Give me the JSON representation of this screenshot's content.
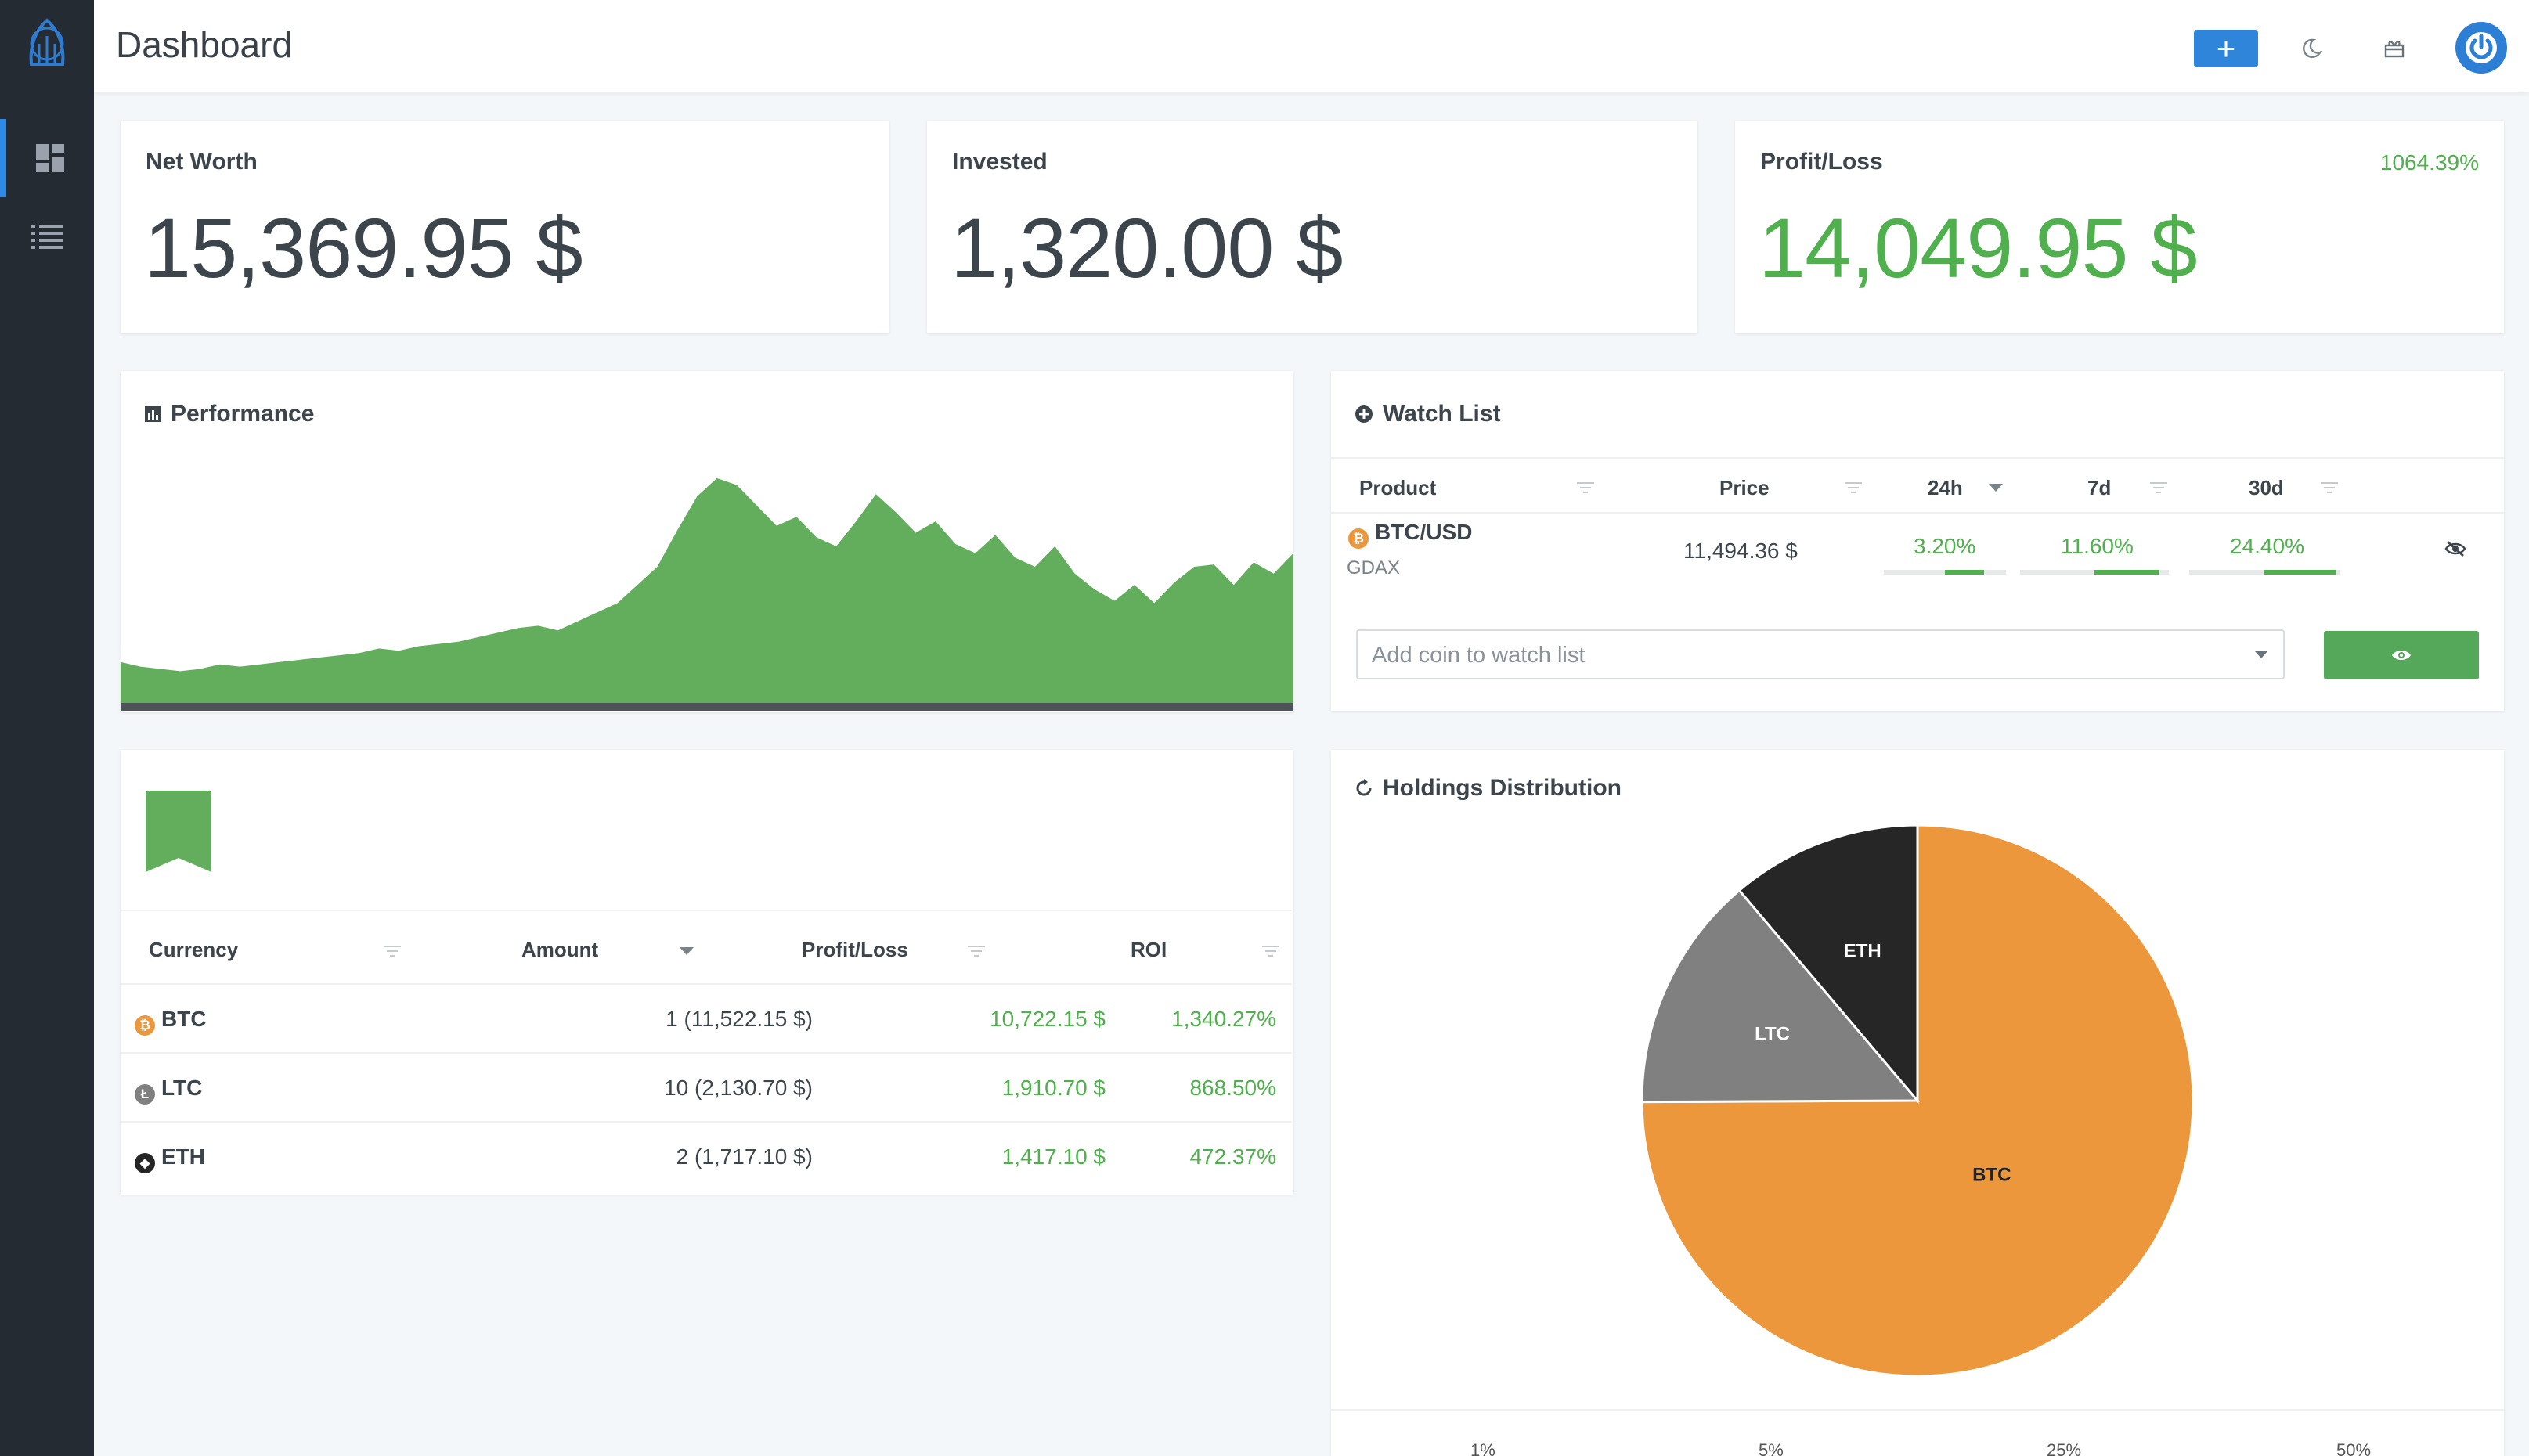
{
  "header": {
    "title": "Dashboard",
    "add_label": "+"
  },
  "stats": {
    "net_worth": {
      "label": "Net Worth",
      "value": "15,369.95 $"
    },
    "invested": {
      "label": "Invested",
      "value": "1,320.00 $"
    },
    "profit_loss": {
      "label": "Profit/Loss",
      "value": "14,049.95 $",
      "percent": "1064.39%"
    }
  },
  "performance": {
    "title": "Performance"
  },
  "watchlist": {
    "title": "Watch List",
    "columns": [
      "Product",
      "Price",
      "24h",
      "7d",
      "30d"
    ],
    "rows": [
      {
        "product": "BTC/USD",
        "exchange": "GDAX",
        "price": "11,494.36 $",
        "d24": "3.20%",
        "d7": "11.60%",
        "d30": "24.40%",
        "d24_fill": 0.32,
        "d7_fill": 0.43,
        "d30_fill": 0.48
      }
    ],
    "add_placeholder": "Add coin to watch list"
  },
  "holdings_table": {
    "columns": [
      "Currency",
      "Amount",
      "Profit/Loss",
      "ROI"
    ],
    "rows": [
      {
        "currency": "BTC",
        "amount": "1 (11,522.15 $)",
        "profit": "10,722.15 $",
        "roi": "1,340.27%"
      },
      {
        "currency": "LTC",
        "amount": "10 (2,130.70 $)",
        "profit": "1,910.70 $",
        "roi": "868.50%"
      },
      {
        "currency": "ETH",
        "amount": "2 (1,717.10 $)",
        "profit": "1,417.10 $",
        "roi": "472.37%"
      }
    ]
  },
  "distribution": {
    "title": "Holdings Distribution",
    "axis_ticks": [
      "1%",
      "5%",
      "25%",
      "50%"
    ]
  },
  "chart_data": [
    {
      "type": "pie",
      "title": "Holdings Distribution",
      "categories": [
        "BTC",
        "LTC",
        "ETH"
      ],
      "values": [
        75.0,
        13.9,
        11.2
      ],
      "colors": [
        "#ec973c",
        "#808080",
        "#262626"
      ]
    },
    {
      "type": "area",
      "title": "Performance",
      "x": [
        0,
        1,
        2,
        3,
        4,
        5,
        6,
        7,
        8,
        9,
        10,
        11,
        12,
        13,
        14,
        15,
        16,
        17,
        18,
        19,
        20,
        21,
        22,
        23,
        24,
        25,
        26,
        27,
        28,
        29,
        30,
        31,
        32,
        33,
        34,
        35,
        36,
        37,
        38,
        39,
        40,
        41,
        42,
        43,
        44,
        45,
        46,
        47,
        48,
        49,
        50,
        51,
        52,
        53,
        54,
        55,
        56,
        57,
        58,
        59
      ],
      "values": [
        18,
        16,
        15,
        14,
        15,
        17,
        16,
        17,
        18,
        19,
        20,
        21,
        22,
        24,
        23,
        25,
        26,
        27,
        29,
        31,
        33,
        34,
        32,
        36,
        40,
        44,
        52,
        60,
        76,
        91,
        99,
        96,
        87,
        78,
        82,
        73,
        69,
        80,
        92,
        84,
        75,
        80,
        70,
        66,
        74,
        64,
        60,
        69,
        57,
        50,
        45,
        52,
        44,
        53,
        60,
        61,
        52,
        62,
        57,
        66
      ]
    }
  ],
  "colors": {
    "accent": "#2f85da",
    "positive": "#4fb04d",
    "btc": "#ec973c",
    "ltc": "#808080",
    "eth": "#262626",
    "sidebar": "#252b33"
  }
}
